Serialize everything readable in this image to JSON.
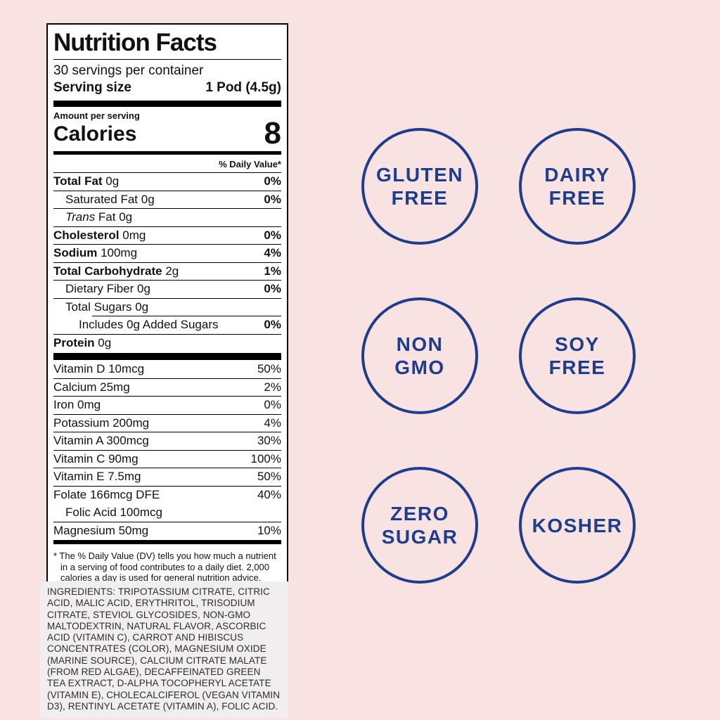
{
  "colors": {
    "background": "#f8e3e2",
    "navy": "#1e3d8d",
    "ingredients_panel": "#f0eeee",
    "label_background": "#ffffff",
    "label_text": "#111111"
  },
  "label": {
    "title": "Nutrition Facts",
    "servings_per_container": "30 servings per container",
    "serving_size_label": "Serving size",
    "serving_size_value": "1 Pod (4.5g)",
    "amount_per_serving": "Amount per serving",
    "calories_label": "Calories",
    "calories_value": "8",
    "daily_value_header": "% Daily Value*",
    "nutrient_rows": [
      {
        "name": "Total Fat",
        "amount": "0g",
        "dv": "0%",
        "bold": true,
        "indent": 0
      },
      {
        "name": "Saturated Fat",
        "amount": "0g",
        "dv": "0%",
        "indent": 1
      },
      {
        "name": "Trans",
        "amount": "Fat 0g",
        "dv": "",
        "indent": 1,
        "italic": true
      },
      {
        "name": "Cholesterol",
        "amount": "0mg",
        "dv": "0%",
        "bold": true,
        "indent": 0
      },
      {
        "name": "Sodium",
        "amount": "100mg",
        "dv": "4%",
        "bold": true,
        "indent": 0
      },
      {
        "name": "Total Carbohydrate",
        "amount": "2g",
        "dv": "1%",
        "bold": true,
        "indent": 0
      },
      {
        "name": "Dietary Fiber",
        "amount": "0g",
        "dv": "0%",
        "indent": 1
      },
      {
        "name": "Total Sugars",
        "amount": "0g",
        "dv": "",
        "indent": 1
      },
      {
        "name": "Includes 0g Added Sugars",
        "amount": "",
        "dv": "0%",
        "indent": 2,
        "rule": "indent"
      },
      {
        "name": "Protein",
        "amount": "0g",
        "dv": "",
        "bold": true,
        "indent": 0
      }
    ],
    "vitamin_rows": [
      {
        "name": "Vitamin D 10mcg",
        "dv": "50%",
        "rule": "none"
      },
      {
        "name": "Calcium 25mg",
        "dv": "2%"
      },
      {
        "name": "Iron 0mg",
        "dv": "0%"
      },
      {
        "name": "Potassium 200mg",
        "dv": "4%"
      },
      {
        "name": "Vitamin A 300mcg",
        "dv": "30%"
      },
      {
        "name": "Vitamin C 90mg",
        "dv": "100%"
      },
      {
        "name": "Vitamin E 7.5mg",
        "dv": "50%"
      },
      {
        "name": "Folate 166mcg DFE",
        "dv": "40%"
      },
      {
        "name": "Folic Acid 100mcg",
        "dv": "",
        "indent": 1,
        "rule": "none"
      },
      {
        "name": "Magnesium 50mg",
        "dv": "10%"
      }
    ],
    "footnote": "* The % Daily Value (DV) tells you how much a nutrient in a serving of food contributes to a daily diet. 2,000 calories a day is used for general nutrition advice."
  },
  "ingredients": {
    "text": "INGREDIENTS: TRIPOTASSIUM CITRATE, CITRIC ACID, MALIC ACID, ERYTHRITOL, TRISODIUM CITRATE, STEVIOL GLYCOSIDES, NON-GMO MALTODEXTRIN, NATURAL FLAVOR, ASCORBIC ACID (VITAMIN C), CARROT AND HIBISCUS CONCENTRATES (COLOR), MAGNESIUM OXIDE (MARINE SOURCE), CALCIUM CITRATE MALATE (FROM RED ALGAE), DECAFFEINATED GREEN TEA EXTRACT, D-ALPHA TOCOPHERYL ACETATE (VITAMIN E), CHOLECALCIFEROL (VEGAN VITAMIN D3), RENTINYL ACETATE (VITAMIN A), FOLIC ACID."
  },
  "badges": [
    {
      "id": "gluten-free",
      "lines": [
        "GLUTEN",
        "FREE"
      ]
    },
    {
      "id": "dairy-free",
      "lines": [
        "DAIRY",
        "FREE"
      ]
    },
    {
      "id": "non-gmo",
      "lines": [
        "NON",
        "GMO"
      ]
    },
    {
      "id": "soy-free",
      "lines": [
        "SOY",
        "FREE"
      ]
    },
    {
      "id": "zero-sugar",
      "lines": [
        "ZERO",
        "SUGAR"
      ]
    },
    {
      "id": "kosher",
      "lines": [
        "KOSHER"
      ]
    }
  ]
}
